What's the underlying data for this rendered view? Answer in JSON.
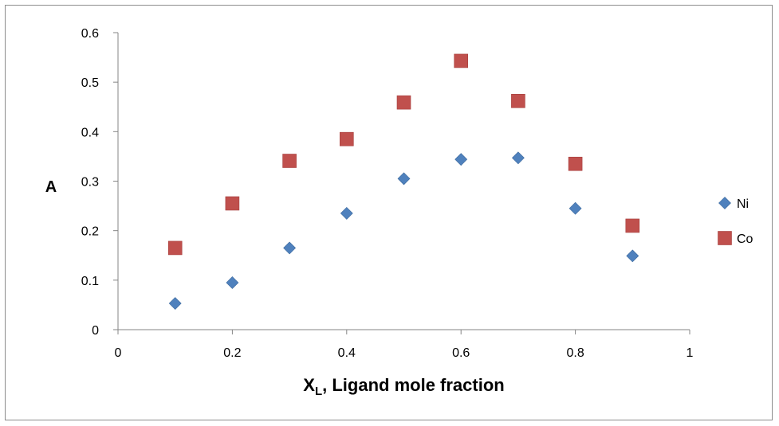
{
  "chart_data": {
    "type": "scatter",
    "title": "",
    "xlabel": {
      "main": "X",
      "subscript": "L",
      "rest": ", Ligand mole fraction"
    },
    "ylabel": "A",
    "xlim": [
      0,
      1
    ],
    "ylim": [
      0,
      0.6
    ],
    "x_ticks": [
      "0",
      "0.2",
      "0.4",
      "0.6",
      "0.8",
      "1"
    ],
    "y_ticks": [
      "0",
      "0.1",
      "0.2",
      "0.3",
      "0.4",
      "0.5",
      "0.6"
    ],
    "x_tick_values": [
      0,
      0.2,
      0.4,
      0.6,
      0.8,
      1
    ],
    "y_tick_values": [
      0,
      0.1,
      0.2,
      0.3,
      0.4,
      0.5,
      0.6
    ],
    "grid": false,
    "legend_position": "right",
    "series": [
      {
        "name": "Ni",
        "marker": "diamond",
        "color": "#4f81bd",
        "x": [
          0.1,
          0.2,
          0.3,
          0.4,
          0.5,
          0.6,
          0.7,
          0.8,
          0.9
        ],
        "y": [
          0.053,
          0.095,
          0.165,
          0.235,
          0.305,
          0.344,
          0.347,
          0.245,
          0.149
        ]
      },
      {
        "name": "Co",
        "marker": "square",
        "color": "#c0504d",
        "x": [
          0.1,
          0.2,
          0.3,
          0.4,
          0.5,
          0.6,
          0.7,
          0.8,
          0.9
        ],
        "y": [
          0.165,
          0.255,
          0.341,
          0.385,
          0.459,
          0.543,
          0.462,
          0.335,
          0.21
        ]
      }
    ]
  }
}
